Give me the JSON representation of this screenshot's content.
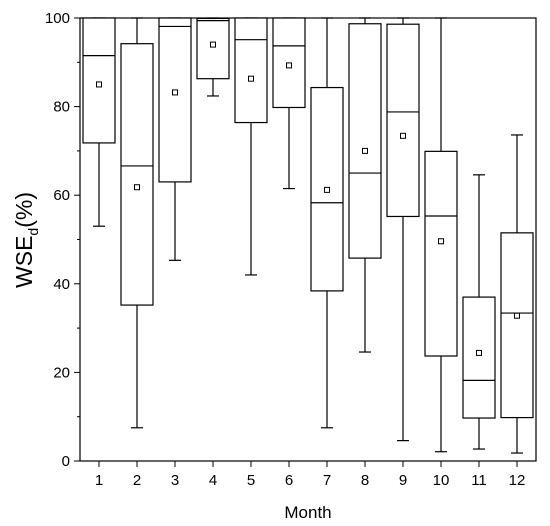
{
  "chart_data": {
    "type": "box",
    "xlabel": "Month",
    "ylabel": {
      "main": "WSE",
      "sub": "d",
      "suffix": "(%)"
    },
    "ylim": [
      0,
      100
    ],
    "yticks": [
      0,
      20,
      40,
      60,
      80,
      100
    ],
    "categories": [
      "1",
      "2",
      "3",
      "4",
      "5",
      "6",
      "7",
      "8",
      "9",
      "10",
      "11",
      "12"
    ],
    "boxes": [
      {
        "month": "1",
        "whisker_low": 53,
        "q1": 71.8,
        "median": 91.5,
        "q3": 100,
        "whisker_high": 100,
        "mean": 85
      },
      {
        "month": "2",
        "whisker_low": 7.5,
        "q1": 35.2,
        "median": 66.6,
        "q3": 94.2,
        "whisker_high": 100,
        "mean": 61.8
      },
      {
        "month": "3",
        "whisker_low": 45.3,
        "q1": 63,
        "median": 98.1,
        "q3": 100,
        "whisker_high": 100,
        "mean": 83.2
      },
      {
        "month": "4",
        "whisker_low": 82.4,
        "q1": 86.3,
        "median": 99.4,
        "q3": 99.9,
        "whisker_high": 100,
        "mean": 94
      },
      {
        "month": "5",
        "whisker_low": 42,
        "q1": 76.4,
        "median": 95.1,
        "q3": 100,
        "whisker_high": 100,
        "mean": 86.3
      },
      {
        "month": "6",
        "whisker_low": 61.5,
        "q1": 79.8,
        "median": 93.7,
        "q3": 100,
        "whisker_high": 100,
        "mean": 89.3
      },
      {
        "month": "7",
        "whisker_low": 7.5,
        "q1": 38.4,
        "median": 58.3,
        "q3": 84.3,
        "whisker_high": 100,
        "mean": 61.2
      },
      {
        "month": "8",
        "whisker_low": 24.6,
        "q1": 45.8,
        "median": 65,
        "q3": 98.7,
        "whisker_high": 100,
        "mean": 70
      },
      {
        "month": "9",
        "whisker_low": 4.6,
        "q1": 55.2,
        "median": 78.8,
        "q3": 98.6,
        "whisker_high": 100,
        "mean": 73.4
      },
      {
        "month": "10",
        "whisker_low": 2.1,
        "q1": 23.7,
        "median": 55.3,
        "q3": 69.9,
        "whisker_high": 100,
        "mean": 49.6
      },
      {
        "month": "11",
        "whisker_low": 2.7,
        "q1": 9.7,
        "median": 18.2,
        "q3": 37,
        "whisker_high": 64.6,
        "mean": 24.4
      },
      {
        "month": "12",
        "whisker_low": 1.8,
        "q1": 9.8,
        "median": 33.4,
        "q3": 51.5,
        "whisker_high": 73.6,
        "mean": 32.8
      }
    ]
  }
}
